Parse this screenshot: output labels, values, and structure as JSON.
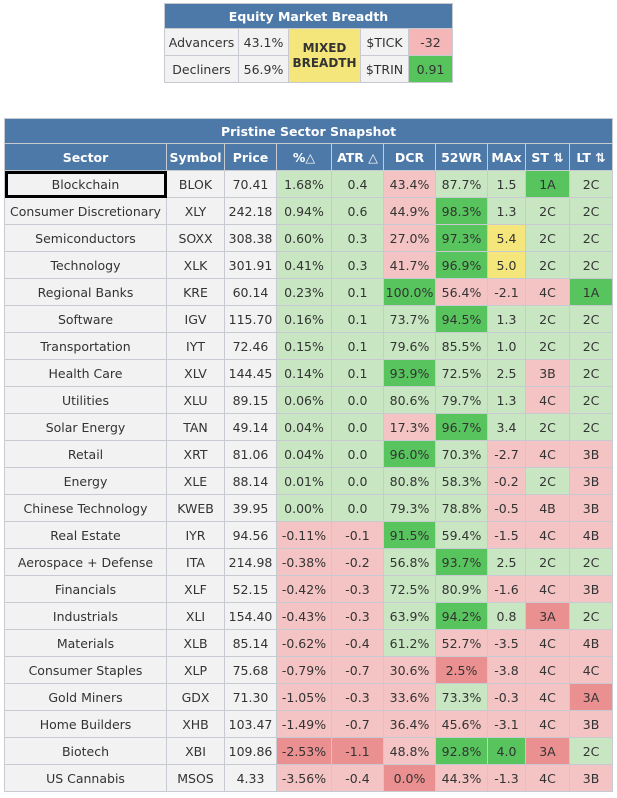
{
  "breadth": {
    "title": "Equity Market Breadth",
    "advancers_label": "Advancers",
    "advancers_value": "43.1%",
    "decliners_label": "Decliners",
    "decliners_value": "56.9%",
    "status_label": "MIXED BREADTH",
    "status_color": "#f4e67a",
    "tick_label": "$TICK",
    "tick_value": "-32",
    "tick_color": "#f4b6b6",
    "trin_label": "$TRIN",
    "trin_value": "0.91",
    "trin_color": "#56c45a"
  },
  "sectors": {
    "title": "Pristine Sector Snapshot",
    "columns": [
      "Sector",
      "Symbol",
      "Price",
      "%△",
      "ATR △",
      "DCR",
      "52WR",
      "MAx",
      "ST ⇅",
      "LT ⇅"
    ],
    "highlight_index": 0,
    "colors": {
      "lg": "#c8e6c2",
      "g": "#58c45e",
      "lr": "#f4c4c4",
      "r": "#ea9090",
      "y": "#f4e67a",
      "n": "#f2f2f2"
    },
    "rows": [
      {
        "sector": "Blockchain",
        "symbol": "BLOK",
        "price": "70.41",
        "pct": "1.68%",
        "atr": "0.4",
        "dcr": "43.4%",
        "wr": "87.7%",
        "max": "1.5",
        "st": "1A",
        "lt": "2C",
        "c": [
          "lg",
          "lg",
          "lr",
          "lg",
          "lg",
          "g",
          "lg"
        ]
      },
      {
        "sector": "Consumer Discretionary",
        "symbol": "XLY",
        "price": "242.18",
        "pct": "0.94%",
        "atr": "0.6",
        "dcr": "44.9%",
        "wr": "98.3%",
        "max": "1.3",
        "st": "2C",
        "lt": "2C",
        "c": [
          "lg",
          "lg",
          "lr",
          "g",
          "lg",
          "lg",
          "lg"
        ]
      },
      {
        "sector": "Semiconductors",
        "symbol": "SOXX",
        "price": "308.38",
        "pct": "0.60%",
        "atr": "0.3",
        "dcr": "27.0%",
        "wr": "97.3%",
        "max": "5.4",
        "st": "2C",
        "lt": "2C",
        "c": [
          "lg",
          "lg",
          "lr",
          "g",
          "y",
          "lg",
          "lg"
        ]
      },
      {
        "sector": "Technology",
        "symbol": "XLK",
        "price": "301.91",
        "pct": "0.41%",
        "atr": "0.3",
        "dcr": "41.7%",
        "wr": "96.9%",
        "max": "5.0",
        "st": "2C",
        "lt": "2C",
        "c": [
          "lg",
          "lg",
          "lr",
          "g",
          "y",
          "lg",
          "lg"
        ]
      },
      {
        "sector": "Regional Banks",
        "symbol": "KRE",
        "price": "60.14",
        "pct": "0.23%",
        "atr": "0.1",
        "dcr": "100.0%",
        "wr": "56.4%",
        "max": "-2.1",
        "st": "4C",
        "lt": "1A",
        "c": [
          "lg",
          "lg",
          "g",
          "lr",
          "lr",
          "lr",
          "g"
        ]
      },
      {
        "sector": "Software",
        "symbol": "IGV",
        "price": "115.70",
        "pct": "0.16%",
        "atr": "0.1",
        "dcr": "73.7%",
        "wr": "94.5%",
        "max": "1.3",
        "st": "2C",
        "lt": "2C",
        "c": [
          "lg",
          "lg",
          "lg",
          "g",
          "lg",
          "lg",
          "lg"
        ]
      },
      {
        "sector": "Transportation",
        "symbol": "IYT",
        "price": "72.46",
        "pct": "0.15%",
        "atr": "0.1",
        "dcr": "79.6%",
        "wr": "85.5%",
        "max": "1.0",
        "st": "2C",
        "lt": "2C",
        "c": [
          "lg",
          "lg",
          "lg",
          "lg",
          "lg",
          "lg",
          "lg"
        ]
      },
      {
        "sector": "Health Care",
        "symbol": "XLV",
        "price": "144.45",
        "pct": "0.14%",
        "atr": "0.1",
        "dcr": "93.9%",
        "wr": "72.5%",
        "max": "2.5",
        "st": "3B",
        "lt": "2C",
        "c": [
          "lg",
          "lg",
          "g",
          "lg",
          "lg",
          "lr",
          "lg"
        ]
      },
      {
        "sector": "Utilities",
        "symbol": "XLU",
        "price": "89.15",
        "pct": "0.06%",
        "atr": "0.0",
        "dcr": "80.6%",
        "wr": "79.7%",
        "max": "1.3",
        "st": "4C",
        "lt": "2C",
        "c": [
          "lg",
          "lg",
          "lg",
          "lg",
          "lg",
          "lr",
          "lg"
        ]
      },
      {
        "sector": "Solar Energy",
        "symbol": "TAN",
        "price": "49.14",
        "pct": "0.04%",
        "atr": "0.0",
        "dcr": "17.3%",
        "wr": "96.7%",
        "max": "3.4",
        "st": "2C",
        "lt": "2C",
        "c": [
          "lg",
          "lg",
          "lr",
          "g",
          "lg",
          "lg",
          "lg"
        ]
      },
      {
        "sector": "Retail",
        "symbol": "XRT",
        "price": "81.06",
        "pct": "0.04%",
        "atr": "0.0",
        "dcr": "96.0%",
        "wr": "70.3%",
        "max": "-2.7",
        "st": "4C",
        "lt": "3B",
        "c": [
          "lg",
          "lg",
          "g",
          "lg",
          "lr",
          "lr",
          "lr"
        ]
      },
      {
        "sector": "Energy",
        "symbol": "XLE",
        "price": "88.14",
        "pct": "0.01%",
        "atr": "0.0",
        "dcr": "80.8%",
        "wr": "58.3%",
        "max": "-0.2",
        "st": "2C",
        "lt": "3B",
        "c": [
          "lg",
          "lg",
          "lg",
          "lg",
          "lr",
          "lg",
          "lr"
        ]
      },
      {
        "sector": "Chinese Technology",
        "symbol": "KWEB",
        "price": "39.95",
        "pct": "0.00%",
        "atr": "0.0",
        "dcr": "79.3%",
        "wr": "78.8%",
        "max": "-0.5",
        "st": "4B",
        "lt": "3B",
        "c": [
          "lg",
          "lg",
          "lg",
          "lg",
          "lr",
          "lr",
          "lr"
        ]
      },
      {
        "sector": "Real Estate",
        "symbol": "IYR",
        "price": "94.56",
        "pct": "-0.11%",
        "atr": "-0.1",
        "dcr": "91.5%",
        "wr": "59.4%",
        "max": "-1.5",
        "st": "4C",
        "lt": "4B",
        "c": [
          "lr",
          "lr",
          "g",
          "lg",
          "lr",
          "lr",
          "lr"
        ]
      },
      {
        "sector": "Aerospace + Defense",
        "symbol": "ITA",
        "price": "214.98",
        "pct": "-0.38%",
        "atr": "-0.2",
        "dcr": "56.8%",
        "wr": "93.7%",
        "max": "2.5",
        "st": "2C",
        "lt": "2C",
        "c": [
          "lr",
          "lr",
          "lg",
          "g",
          "lg",
          "lg",
          "lg"
        ]
      },
      {
        "sector": "Financials",
        "symbol": "XLF",
        "price": "52.15",
        "pct": "-0.42%",
        "atr": "-0.3",
        "dcr": "72.5%",
        "wr": "80.9%",
        "max": "-1.6",
        "st": "4C",
        "lt": "3B",
        "c": [
          "lr",
          "lr",
          "lg",
          "lg",
          "lr",
          "lr",
          "lr"
        ]
      },
      {
        "sector": "Industrials",
        "symbol": "XLI",
        "price": "154.40",
        "pct": "-0.43%",
        "atr": "-0.3",
        "dcr": "63.9%",
        "wr": "94.2%",
        "max": "0.8",
        "st": "3A",
        "lt": "2C",
        "c": [
          "lr",
          "lr",
          "lg",
          "g",
          "lg",
          "r",
          "lg"
        ]
      },
      {
        "sector": "Materials",
        "symbol": "XLB",
        "price": "85.14",
        "pct": "-0.62%",
        "atr": "-0.4",
        "dcr": "61.2%",
        "wr": "52.7%",
        "max": "-3.5",
        "st": "4C",
        "lt": "4B",
        "c": [
          "lr",
          "lr",
          "lg",
          "lr",
          "lr",
          "lr",
          "lr"
        ]
      },
      {
        "sector": "Consumer Staples",
        "symbol": "XLP",
        "price": "75.68",
        "pct": "-0.79%",
        "atr": "-0.7",
        "dcr": "30.6%",
        "wr": "2.5%",
        "max": "-3.8",
        "st": "4C",
        "lt": "4C",
        "c": [
          "lr",
          "lr",
          "lr",
          "r",
          "lr",
          "lr",
          "lr"
        ]
      },
      {
        "sector": "Gold Miners",
        "symbol": "GDX",
        "price": "71.30",
        "pct": "-1.05%",
        "atr": "-0.3",
        "dcr": "33.6%",
        "wr": "73.3%",
        "max": "-0.3",
        "st": "4C",
        "lt": "3A",
        "c": [
          "lr",
          "lr",
          "lr",
          "lg",
          "lr",
          "lr",
          "r"
        ]
      },
      {
        "sector": "Home Builders",
        "symbol": "XHB",
        "price": "103.47",
        "pct": "-1.49%",
        "atr": "-0.7",
        "dcr": "36.4%",
        "wr": "45.6%",
        "max": "-3.1",
        "st": "4C",
        "lt": "3B",
        "c": [
          "lr",
          "lr",
          "lr",
          "lr",
          "lr",
          "lr",
          "lr"
        ]
      },
      {
        "sector": "Biotech",
        "symbol": "XBI",
        "price": "109.86",
        "pct": "-2.53%",
        "atr": "-1.1",
        "dcr": "48.8%",
        "wr": "92.8%",
        "max": "4.0",
        "st": "3A",
        "lt": "2C",
        "c": [
          "r",
          "r",
          "lr",
          "g",
          "g",
          "r",
          "lg"
        ]
      },
      {
        "sector": "US Cannabis",
        "symbol": "MSOS",
        "price": "4.33",
        "pct": "-3.56%",
        "atr": "-0.4",
        "dcr": "0.0%",
        "wr": "44.3%",
        "max": "-1.3",
        "st": "4C",
        "lt": "3B",
        "c": [
          "lr",
          "lr",
          "r",
          "lr",
          "lr",
          "lr",
          "lr"
        ]
      }
    ]
  }
}
